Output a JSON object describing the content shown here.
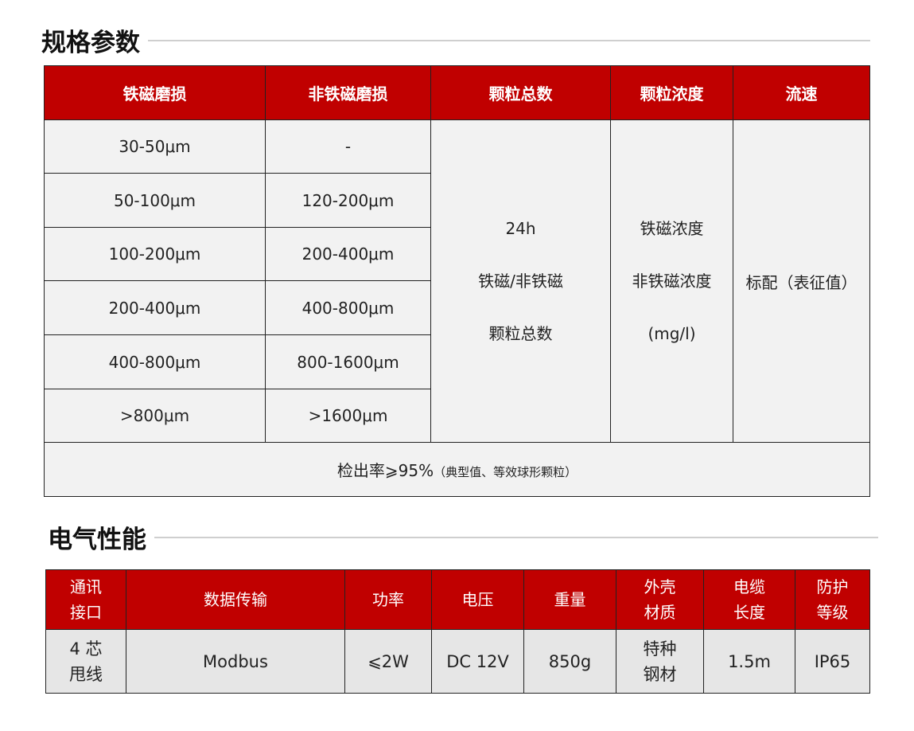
{
  "spec": {
    "title": "规格参数",
    "headers": [
      "铁磁磨损",
      "非铁磁磨损",
      "颗粒总数",
      "颗粒浓度",
      "流速"
    ],
    "rows": [
      [
        "30-50μm",
        "-"
      ],
      [
        "50-100μm",
        "120-200μm"
      ],
      [
        "100-200μm",
        "200-400μm"
      ],
      [
        "200-400μm",
        "400-800μm"
      ],
      [
        "400-800μm",
        "800-1600μm"
      ],
      [
        ">800μm",
        ">1600μm"
      ]
    ],
    "total": [
      "24h",
      "铁磁/非铁磁",
      "颗粒总数"
    ],
    "conc": [
      "铁磁浓度",
      "非铁磁浓度",
      "(mg/l)"
    ],
    "flow": "标配（表征值）",
    "footer_main": "检出率⩾95%",
    "footer_note": "（典型值、等效球形颗粒）"
  },
  "elec": {
    "title": "电气性能",
    "headers": [
      [
        "通讯",
        "接口"
      ],
      [
        "数据传输"
      ],
      [
        "功率"
      ],
      [
        "电压"
      ],
      [
        "重量"
      ],
      [
        "外壳",
        "材质"
      ],
      [
        "电缆",
        "长度"
      ],
      [
        "防护",
        "等级"
      ]
    ],
    "values": [
      [
        "4 芯",
        "甩线"
      ],
      [
        "Modbus"
      ],
      [
        "⩽2W"
      ],
      [
        "DC 12V"
      ],
      [
        "850g"
      ],
      [
        "特种",
        "钢材"
      ],
      [
        "1.5m"
      ],
      [
        "IP65"
      ]
    ]
  },
  "colors": {
    "accent": "#c00000"
  }
}
